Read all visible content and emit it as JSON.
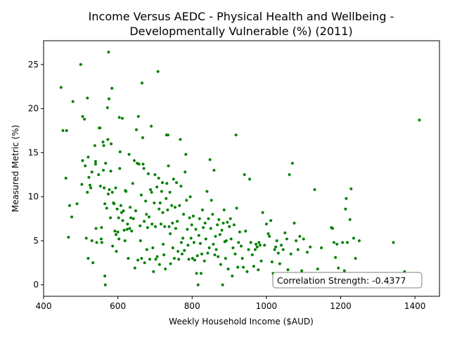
{
  "chart_data": {
    "type": "scatter",
    "title_lines": [
      "Income Versus AEDC - Physical Health and Wellbeing -",
      "Developmentally Vulnerable (%) (2011)"
    ],
    "xlabel": "Weekly Household Income ($AUD)",
    "ylabel": "Measured Metric (%)",
    "xlim": [
      400,
      1466
    ],
    "ylim": [
      -1.3,
      27.7
    ],
    "xticks": [
      400,
      600,
      800,
      1000,
      1200,
      1400
    ],
    "yticks": [
      0,
      5,
      10,
      15,
      20,
      25
    ],
    "grid": false,
    "point_color": "#008000",
    "annotation": "Correlation Strength: -0.4377",
    "annotation_position": "bottom-right",
    "points": [
      [
        447,
        22.4
      ],
      [
        452,
        17.5
      ],
      [
        462,
        17.5
      ],
      [
        460,
        12.1
      ],
      [
        467,
        5.4
      ],
      [
        470,
        9.0
      ],
      [
        476,
        7.7
      ],
      [
        479,
        20.8
      ],
      [
        490,
        9.2
      ],
      [
        500,
        25.0
      ],
      [
        503,
        11.4
      ],
      [
        505,
        19.1
      ],
      [
        505,
        14.1
      ],
      [
        510,
        18.8
      ],
      [
        512,
        13.5
      ],
      [
        515,
        5.3
      ],
      [
        518,
        21.2
      ],
      [
        518,
        10.5
      ],
      [
        520,
        14.5
      ],
      [
        522,
        12.2
      ],
      [
        520,
        3.0
      ],
      [
        525,
        11.3
      ],
      [
        527,
        11.0
      ],
      [
        530,
        12.8
      ],
      [
        530,
        5.0
      ],
      [
        533,
        2.5
      ],
      [
        538,
        15.8
      ],
      [
        540,
        14.0
      ],
      [
        540,
        13.7
      ],
      [
        541,
        6.4
      ],
      [
        543,
        4.8
      ],
      [
        548,
        12.5
      ],
      [
        550,
        17.8
      ],
      [
        552,
        17.8
      ],
      [
        553,
        11.2
      ],
      [
        555,
        5.2
      ],
      [
        556,
        6.5
      ],
      [
        557,
        4.8
      ],
      [
        560,
        16.2
      ],
      [
        561,
        13.0
      ],
      [
        562,
        15.8
      ],
      [
        563,
        11.0
      ],
      [
        565,
        9.2
      ],
      [
        565,
        1.0
      ],
      [
        567,
        13.8
      ],
      [
        566,
        0.0
      ],
      [
        570,
        8.7
      ],
      [
        572,
        20.1
      ],
      [
        573,
        16.5
      ],
      [
        574,
        10.3
      ],
      [
        575,
        26.4
      ],
      [
        576,
        21.1
      ],
      [
        577,
        10.8
      ],
      [
        580,
        7.6
      ],
      [
        581,
        12.9
      ],
      [
        582,
        16.0
      ],
      [
        584,
        22.3
      ],
      [
        585,
        10.5
      ],
      [
        586,
        4.4
      ],
      [
        588,
        9.3
      ],
      [
        590,
        9.2
      ],
      [
        592,
        6.1
      ],
      [
        594,
        11.0
      ],
      [
        595,
        5.7
      ],
      [
        596,
        3.8
      ],
      [
        598,
        8.6
      ],
      [
        600,
        6.0
      ],
      [
        602,
        7.6
      ],
      [
        603,
        5.2
      ],
      [
        604,
        19.0
      ],
      [
        605,
        13.2
      ],
      [
        606,
        15.1
      ],
      [
        608,
        9.0
      ],
      [
        610,
        8.2
      ],
      [
        612,
        18.9
      ],
      [
        613,
        7.3
      ],
      [
        615,
        8.4
      ],
      [
        617,
        6.2
      ],
      [
        619,
        5.0
      ],
      [
        620,
        10.7
      ],
      [
        622,
        10.6
      ],
      [
        625,
        6.3
      ],
      [
        626,
        6.9
      ],
      [
        628,
        3.0
      ],
      [
        630,
        14.8
      ],
      [
        632,
        6.4
      ],
      [
        633,
        8.8
      ],
      [
        635,
        7.6
      ],
      [
        637,
        6.1
      ],
      [
        640,
        11.5
      ],
      [
        642,
        7.5
      ],
      [
        644,
        14.1
      ],
      [
        646,
        1.9
      ],
      [
        648,
        8.4
      ],
      [
        650,
        17.6
      ],
      [
        652,
        13.8
      ],
      [
        654,
        2.8
      ],
      [
        655,
        19.1
      ],
      [
        657,
        13.7
      ],
      [
        660,
        6.7
      ],
      [
        661,
        5.0
      ],
      [
        663,
        10.2
      ],
      [
        664,
        3.0
      ],
      [
        665,
        22.9
      ],
      [
        667,
        16.7
      ],
      [
        668,
        13.7
      ],
      [
        670,
        13.2
      ],
      [
        671,
        7.2
      ],
      [
        672,
        2.5
      ],
      [
        675,
        9.5
      ],
      [
        677,
        8.0
      ],
      [
        678,
        4.0
      ],
      [
        680,
        6.5
      ],
      [
        682,
        12.6
      ],
      [
        684,
        7.7
      ],
      [
        686,
        2.9
      ],
      [
        688,
        10.8
      ],
      [
        690,
        18.0
      ],
      [
        691,
        10.5
      ],
      [
        692,
        6.9
      ],
      [
        694,
        4.2
      ],
      [
        696,
        1.5
      ],
      [
        698,
        9.3
      ],
      [
        700,
        12.5
      ],
      [
        701,
        6.6
      ],
      [
        702,
        2.9
      ],
      [
        705,
        11.1
      ],
      [
        706,
        3.2
      ],
      [
        708,
        24.2
      ],
      [
        710,
        12.1
      ],
      [
        711,
        8.6
      ],
      [
        712,
        2.3
      ],
      [
        714,
        9.3
      ],
      [
        716,
        6.9
      ],
      [
        718,
        10.6
      ],
      [
        720,
        11.6
      ],
      [
        721,
        8.2
      ],
      [
        722,
        4.6
      ],
      [
        724,
        3.4
      ],
      [
        726,
        6.6
      ],
      [
        728,
        1.8
      ],
      [
        730,
        9.8
      ],
      [
        731,
        17.0
      ],
      [
        732,
        11.5
      ],
      [
        734,
        8.5
      ],
      [
        735,
        17.0
      ],
      [
        736,
        13.5
      ],
      [
        738,
        6.6
      ],
      [
        740,
        10.5
      ],
      [
        741,
        5.8
      ],
      [
        742,
        2.4
      ],
      [
        745,
        9.0
      ],
      [
        747,
        7.0
      ],
      [
        748,
        4.2
      ],
      [
        750,
        12.0
      ],
      [
        752,
        3.0
      ],
      [
        754,
        8.8
      ],
      [
        756,
        6.4
      ],
      [
        758,
        11.6
      ],
      [
        760,
        7.2
      ],
      [
        762,
        3.8
      ],
      [
        764,
        2.9
      ],
      [
        766,
        9.0
      ],
      [
        768,
        16.5
      ],
      [
        770,
        11.2
      ],
      [
        771,
        4.8
      ],
      [
        773,
        3.5
      ],
      [
        775,
        5.3
      ],
      [
        777,
        8.0
      ],
      [
        779,
        3.9
      ],
      [
        781,
        12.8
      ],
      [
        783,
        14.8
      ],
      [
        785,
        9.6
      ],
      [
        787,
        6.3
      ],
      [
        789,
        4.5
      ],
      [
        791,
        2.9
      ],
      [
        793,
        7.6
      ],
      [
        795,
        10.0
      ],
      [
        797,
        5.3
      ],
      [
        799,
        6.8
      ],
      [
        801,
        3.0
      ],
      [
        803,
        7.8
      ],
      [
        805,
        4.8
      ],
      [
        807,
        2.8
      ],
      [
        810,
        6.3
      ],
      [
        812,
        1.3
      ],
      [
        814,
        3.3
      ],
      [
        816,
        0.0
      ],
      [
        818,
        5.6
      ],
      [
        820,
        7.5
      ],
      [
        822,
        4.7
      ],
      [
        824,
        1.3
      ],
      [
        826,
        3.5
      ],
      [
        828,
        8.5
      ],
      [
        830,
        6.5
      ],
      [
        833,
        2.7
      ],
      [
        835,
        7.0
      ],
      [
        837,
        5.2
      ],
      [
        840,
        10.6
      ],
      [
        842,
        3.6
      ],
      [
        844,
        7.5
      ],
      [
        846,
        4.2
      ],
      [
        848,
        14.2
      ],
      [
        850,
        6.4
      ],
      [
        852,
        9.6
      ],
      [
        855,
        8.0
      ],
      [
        857,
        4.6
      ],
      [
        859,
        13.0
      ],
      [
        861,
        3.4
      ],
      [
        863,
        5.5
      ],
      [
        865,
        4.0
      ],
      [
        868,
        6.8
      ],
      [
        870,
        3.2
      ],
      [
        872,
        7.4
      ],
      [
        875,
        5.7
      ],
      [
        877,
        2.3
      ],
      [
        880,
        6.2
      ],
      [
        882,
        0.0
      ],
      [
        884,
        7.0
      ],
      [
        886,
        8.5
      ],
      [
        888,
        4.9
      ],
      [
        890,
        3.0
      ],
      [
        892,
        5.0
      ],
      [
        895,
        7.1
      ],
      [
        897,
        1.8
      ],
      [
        900,
        6.6
      ],
      [
        903,
        7.5
      ],
      [
        905,
        5.2
      ],
      [
        908,
        1.0
      ],
      [
        910,
        4.2
      ],
      [
        913,
        6.8
      ],
      [
        916,
        3.5
      ],
      [
        918,
        17.0
      ],
      [
        920,
        8.7
      ],
      [
        923,
        2.0
      ],
      [
        925,
        4.8
      ],
      [
        928,
        6.0
      ],
      [
        932,
        4.4
      ],
      [
        935,
        3.0
      ],
      [
        938,
        2.0
      ],
      [
        941,
        12.5
      ],
      [
        944,
        6.1
      ],
      [
        948,
        1.5
      ],
      [
        952,
        4.0
      ],
      [
        955,
        12.0
      ],
      [
        958,
        4.8
      ],
      [
        962,
        3.4
      ],
      [
        966,
        2.1
      ],
      [
        970,
        4.0
      ],
      [
        972,
        4.6
      ],
      [
        975,
        4.3
      ],
      [
        978,
        1.7
      ],
      [
        980,
        4.8
      ],
      [
        983,
        4.5
      ],
      [
        986,
        2.7
      ],
      [
        990,
        8.2
      ],
      [
        995,
        4.5
      ],
      [
        1000,
        6.9
      ],
      [
        1005,
        5.8
      ],
      [
        1008,
        5.5
      ],
      [
        1012,
        7.3
      ],
      [
        1015,
        2.6
      ],
      [
        1018,
        1.3
      ],
      [
        1022,
        4.0
      ],
      [
        1025,
        4.3
      ],
      [
        1028,
        5.0
      ],
      [
        1032,
        3.6
      ],
      [
        1036,
        2.4
      ],
      [
        1040,
        4.5
      ],
      [
        1045,
        4.0
      ],
      [
        1050,
        5.9
      ],
      [
        1055,
        5.2
      ],
      [
        1058,
        1.7
      ],
      [
        1062,
        12.5
      ],
      [
        1066,
        3.5
      ],
      [
        1070,
        13.8
      ],
      [
        1075,
        7.0
      ],
      [
        1080,
        5.0
      ],
      [
        1085,
        4.0
      ],
      [
        1090,
        5.5
      ],
      [
        1095,
        1.6
      ],
      [
        1100,
        5.2
      ],
      [
        1110,
        3.7
      ],
      [
        1118,
        4.3
      ],
      [
        1130,
        10.8
      ],
      [
        1138,
        1.8
      ],
      [
        1148,
        4.2
      ],
      [
        1175,
        6.5
      ],
      [
        1178,
        6.4
      ],
      [
        1182,
        4.8
      ],
      [
        1186,
        3.1
      ],
      [
        1190,
        4.6
      ],
      [
        1194,
        1.9
      ],
      [
        1205,
        4.8
      ],
      [
        1210,
        1.6
      ],
      [
        1213,
        8.6
      ],
      [
        1215,
        9.8
      ],
      [
        1218,
        4.8
      ],
      [
        1225,
        7.4
      ],
      [
        1228,
        10.9
      ],
      [
        1235,
        5.3
      ],
      [
        1240,
        3.0
      ],
      [
        1250,
        5.0
      ],
      [
        1330,
        0.0
      ],
      [
        1342,
        4.8
      ],
      [
        1372,
        1.5
      ],
      [
        1412,
        18.7
      ]
    ]
  }
}
